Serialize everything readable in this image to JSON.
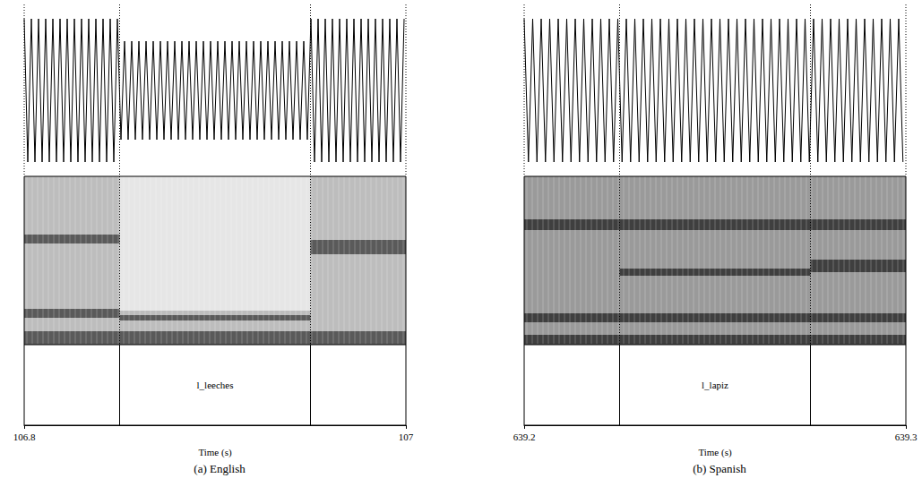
{
  "chart_data": [
    {
      "type": "waveform_spectrogram_textgrid",
      "title": "(a) English",
      "xlabel": "Time (s)",
      "xlim": [
        106.8,
        107
      ],
      "xticks": [
        106.8,
        107
      ],
      "boundaries": [
        106.85,
        106.95
      ],
      "interval_label": "l_leeches"
    },
    {
      "type": "waveform_spectrogram_textgrid",
      "title": "(b) Spanish",
      "xlabel": "Time (s)",
      "xlim": [
        639.2,
        639.3
      ],
      "xticks": [
        639.2,
        639.3
      ],
      "boundaries": [
        639.225,
        639.275
      ],
      "interval_label": "l_lapiz"
    }
  ]
}
